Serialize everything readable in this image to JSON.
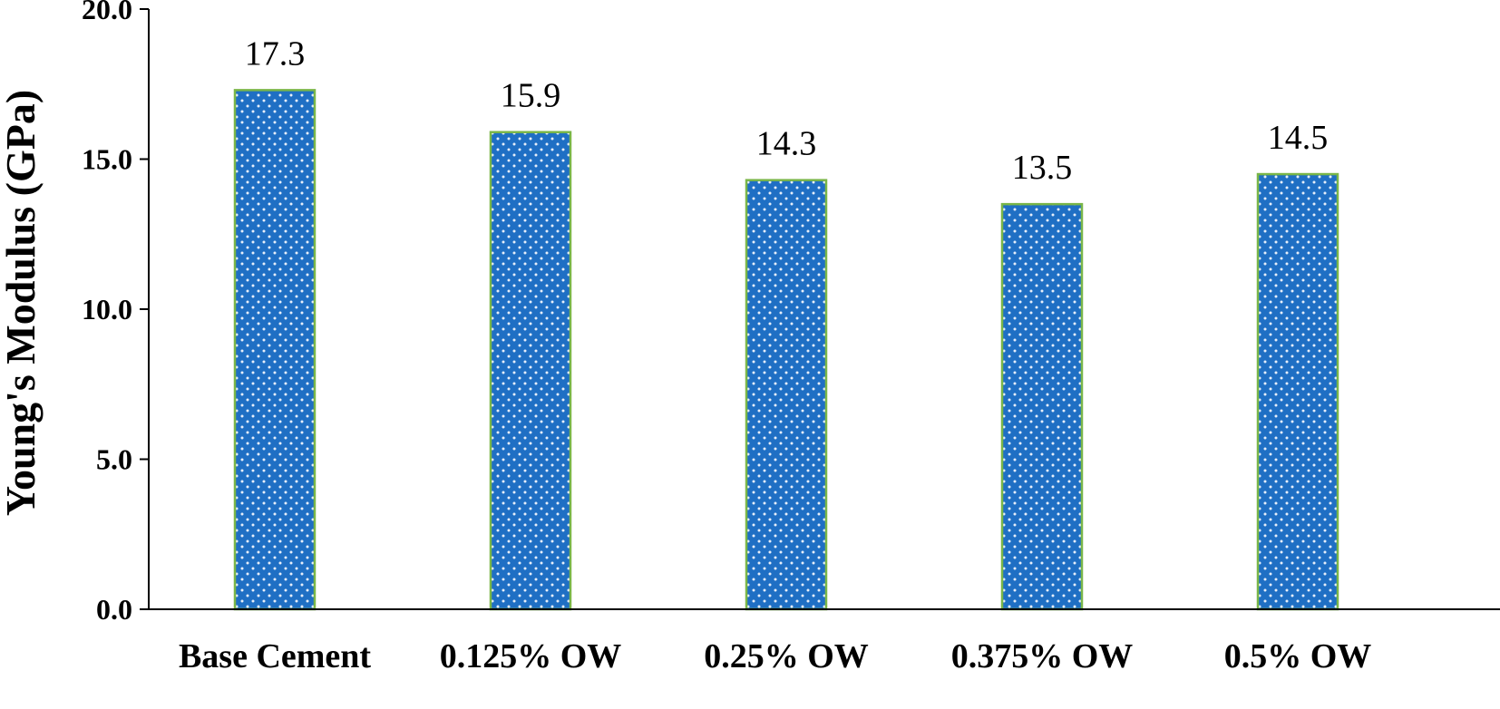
{
  "chart_data": {
    "type": "bar",
    "categories": [
      "Base Cement",
      "0.125% OW",
      "0.25% OW",
      "0.375% OW",
      "0.5% OW"
    ],
    "values": [
      17.3,
      15.9,
      14.3,
      13.5,
      14.5
    ],
    "data_labels": [
      "17.3",
      "15.9",
      "14.3",
      "13.5",
      "14.5"
    ],
    "title": "",
    "xlabel": "",
    "ylabel": "Young's Modulus (GPa)",
    "ylim": [
      0,
      20
    ],
    "yticks": [
      0,
      5,
      10,
      15,
      20
    ],
    "ytick_labels": [
      "0.0",
      "5.0",
      "10.0",
      "15.0",
      "20.0"
    ],
    "grid": false,
    "legend": "none",
    "bar_fill_color": "#1f6fc4",
    "bar_pattern_color": "#e6eefa",
    "bar_outline_color": "#7ab648",
    "axis_color": "#000000"
  }
}
